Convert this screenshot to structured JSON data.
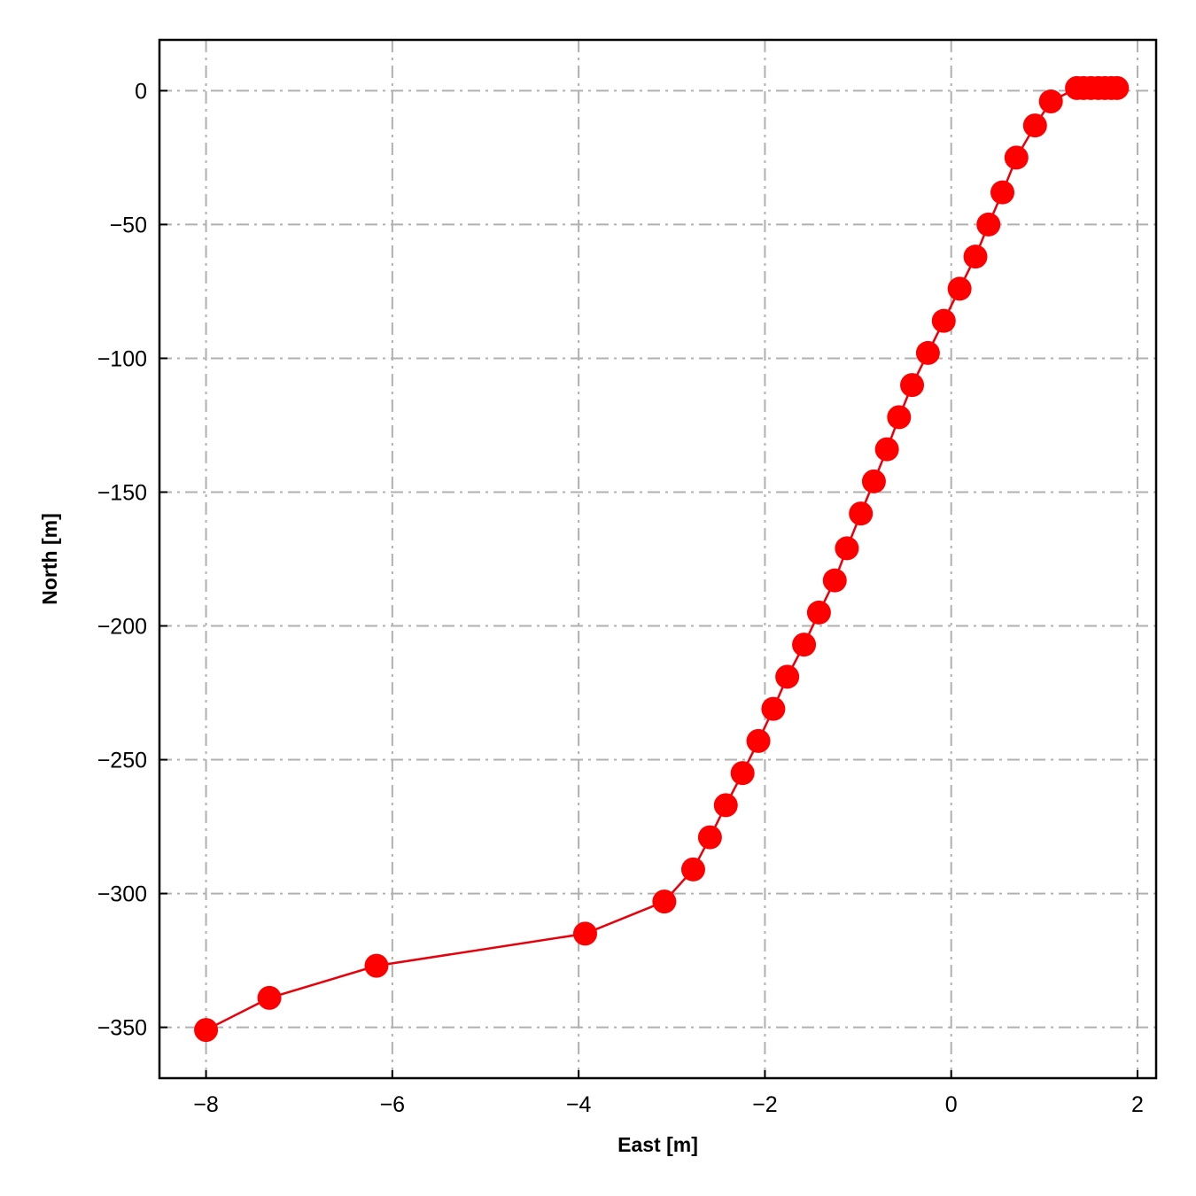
{
  "chart_data": {
    "type": "line",
    "title": "",
    "xlabel": "East [m]",
    "ylabel": "North [m]",
    "xlim": [
      -8.5,
      2.2
    ],
    "ylim": [
      -369,
      19
    ],
    "xticks": [
      -8,
      -6,
      -4,
      -2,
      0,
      2
    ],
    "yticks": [
      0,
      -50,
      -100,
      -150,
      -200,
      -250,
      -300,
      -350
    ],
    "xtick_labels": [
      "−8",
      "−6",
      "−4",
      "−2",
      "0",
      "2"
    ],
    "ytick_labels": [
      "0",
      "−50",
      "−100",
      "−150",
      "−200",
      "−250",
      "−300",
      "−350"
    ],
    "grid": true,
    "grid_style": "dash-dot",
    "series": [
      {
        "color": "#ff0000",
        "line_color": "#e8000b",
        "marker": "circle",
        "x": [
          -8.0,
          -7.32,
          -6.17,
          -3.93,
          -3.08,
          -2.77,
          -2.59,
          -2.42,
          -2.24,
          -2.07,
          -1.91,
          -1.76,
          -1.58,
          -1.42,
          -1.25,
          -1.12,
          -0.97,
          -0.83,
          -0.69,
          -0.56,
          -0.42,
          -0.25,
          -0.08,
          0.09,
          0.26,
          0.4,
          0.55,
          0.7,
          0.9,
          1.07,
          1.35,
          1.42,
          1.5,
          1.58,
          1.65,
          1.72,
          1.78
        ],
        "y": [
          -351,
          -339,
          -327,
          -315,
          -303,
          -291,
          -279,
          -267,
          -255,
          -243,
          -231,
          -219,
          -207,
          -195,
          -183,
          -171,
          -158,
          -146,
          -134,
          -122,
          -110,
          -98,
          -86,
          -74,
          -62,
          -50,
          -38,
          -25,
          -13,
          -4,
          1,
          1,
          1,
          1,
          1,
          1,
          1
        ]
      }
    ]
  },
  "colors": {
    "grid": "#b0b0b0",
    "axes": "#000000"
  }
}
